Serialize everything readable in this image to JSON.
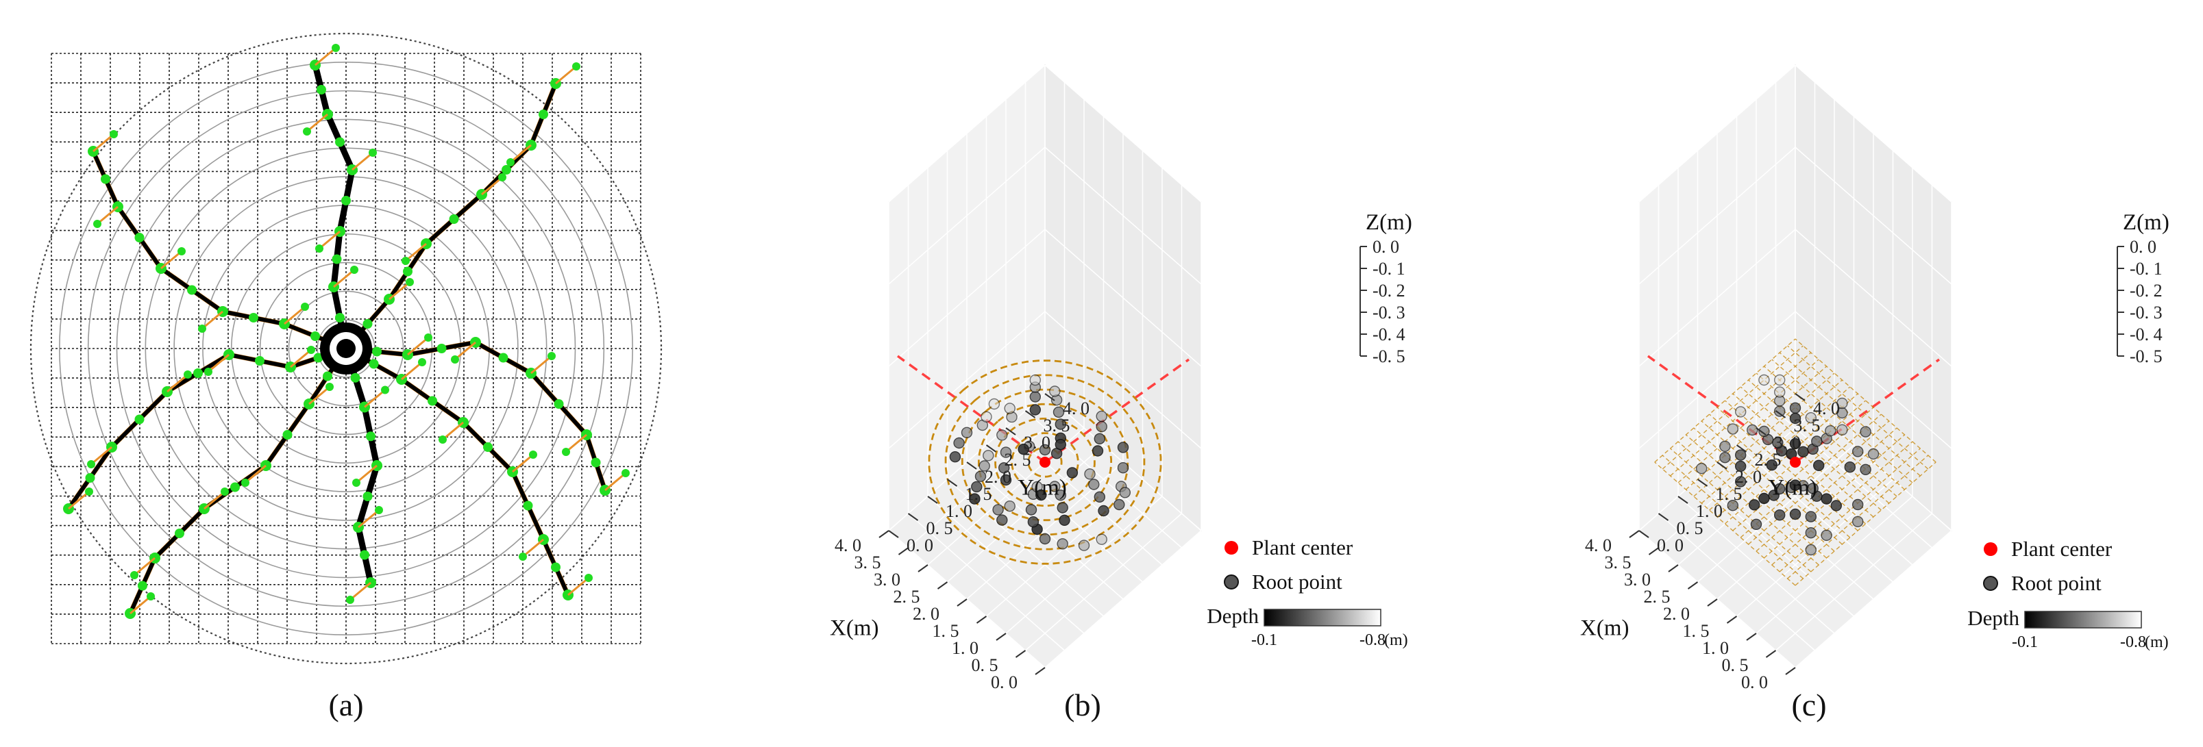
{
  "colors": {
    "root_green": "#22dd22",
    "root_orange": "#e8902a",
    "trace_black": "#000000",
    "plant_center": "#ff0000",
    "ring_orange": "#c88a10",
    "guide_red": "#ff4040",
    "pane_gray": "#efefef"
  },
  "panels": {
    "a": {
      "caption": "(a)"
    },
    "b": {
      "caption": "(b)"
    },
    "c": {
      "caption": "(c)"
    }
  },
  "chart_data": [
    {
      "type": "diagram",
      "panel": "a",
      "caption": "(a)",
      "grid": {
        "cols": 20,
        "rows": 20
      },
      "ring_count": 11,
      "roots": [
        {
          "points": [
            [
              0,
              0
            ],
            [
              0.3,
              0.95
            ],
            [
              0.5,
              1.9
            ],
            [
              0.2,
              2.9
            ],
            [
              0.4,
              3.8
            ]
          ]
        },
        {
          "points": [
            [
              0,
              0
            ],
            [
              -0.2,
              -1.0
            ],
            [
              -0.1,
              -1.9
            ],
            [
              0.1,
              -2.9
            ],
            [
              -0.3,
              -3.8
            ],
            [
              -0.5,
              -4.6
            ]
          ]
        },
        {
          "points": [
            [
              0,
              0
            ],
            [
              0.9,
              0.5
            ],
            [
              1.9,
              1.2
            ],
            [
              2.7,
              2.0
            ],
            [
              3.2,
              3.1
            ],
            [
              3.6,
              4.0
            ]
          ]
        },
        {
          "points": [
            [
              0,
              0
            ],
            [
              1.0,
              0.1
            ],
            [
              2.1,
              -0.1
            ],
            [
              3.0,
              0.4
            ],
            [
              3.9,
              1.4
            ],
            [
              4.2,
              2.3
            ]
          ]
        },
        {
          "points": [
            [
              0,
              0
            ],
            [
              -0.9,
              0.3
            ],
            [
              -1.9,
              0.1
            ],
            [
              -2.9,
              0.7
            ],
            [
              -3.8,
              1.6
            ],
            [
              -4.5,
              2.6
            ]
          ]
        },
        {
          "points": [
            [
              0,
              0
            ],
            [
              -1.0,
              -0.4
            ],
            [
              -2.0,
              -0.6
            ],
            [
              -3.0,
              -1.3
            ],
            [
              -3.7,
              -2.3
            ],
            [
              -4.1,
              -3.2
            ]
          ]
        },
        {
          "points": [
            [
              0,
              0
            ],
            [
              0.7,
              -0.8
            ],
            [
              1.3,
              -1.7
            ],
            [
              2.2,
              -2.5
            ],
            [
              3.0,
              -3.3
            ],
            [
              3.4,
              -4.3
            ]
          ]
        },
        {
          "points": [
            [
              0,
              0
            ],
            [
              -0.6,
              0.9
            ],
            [
              -1.3,
              1.9
            ],
            [
              -2.3,
              2.6
            ],
            [
              -3.1,
              3.4
            ],
            [
              -3.5,
              4.3
            ]
          ]
        }
      ]
    },
    {
      "type": "scatter3d",
      "panel": "b",
      "caption": "(b)",
      "x_label": "X(m)",
      "y_label": "Y(m)",
      "z_label": "Z(m)",
      "xlim": [
        0,
        4
      ],
      "ylim": [
        0,
        4
      ],
      "zlim": [
        -0.5,
        0
      ],
      "x_ticks": [
        "0. 0",
        "0. 5",
        "1. 0",
        "1. 5",
        "2. 0",
        "2. 5",
        "3. 0",
        "3. 5",
        "4. 0"
      ],
      "y_ticks": [
        "0. 0",
        "0. 5",
        "1. 0",
        "1. 5",
        "2. 0",
        "2. 5",
        "3. 0",
        "3. 5",
        "4. 0"
      ],
      "z_ticks": [
        "0. 0",
        "-0. 1",
        "-0. 2",
        "-0. 3",
        "-0. 4",
        "-0. 5"
      ],
      "plant_center": [
        2.0,
        2.0,
        0
      ],
      "rings": [
        0.3,
        0.6,
        0.9,
        1.2,
        1.5,
        1.8,
        2.1
      ],
      "legend": [
        {
          "label": "Plant center",
          "color": "#ff0000"
        },
        {
          "label": "Root point",
          "color": "#555555"
        }
      ],
      "colorbar": {
        "label": "Depth",
        "min_label": "-0.1",
        "max_label": "-0.8",
        "unit": "(m)"
      },
      "root_points": [
        [
          1.15,
          0.95,
          -0.05
        ],
        [
          1.35,
          1.05,
          -0.12
        ],
        [
          1.6,
          1.25,
          -0.2
        ],
        [
          1.85,
          1.55,
          -0.28
        ],
        [
          1.95,
          1.75,
          -0.35
        ],
        [
          0.95,
          1.45,
          -0.08
        ],
        [
          1.2,
          1.65,
          -0.15
        ],
        [
          1.45,
          1.85,
          -0.22
        ],
        [
          1.7,
          1.95,
          -0.3
        ],
        [
          0.6,
          2.1,
          -0.1
        ],
        [
          0.9,
          2.3,
          -0.18
        ],
        [
          1.2,
          2.45,
          -0.25
        ],
        [
          1.45,
          2.6,
          -0.33
        ],
        [
          2.4,
          0.6,
          -0.06
        ],
        [
          2.6,
          0.85,
          -0.14
        ],
        [
          2.75,
          1.1,
          -0.22
        ],
        [
          2.9,
          1.35,
          -0.3
        ],
        [
          3.05,
          1.6,
          -0.38
        ],
        [
          2.3,
          1.3,
          -0.1
        ],
        [
          2.55,
          1.5,
          -0.18
        ],
        [
          2.8,
          1.8,
          -0.26
        ],
        [
          3.15,
          2.05,
          -0.34
        ],
        [
          2.2,
          2.6,
          -0.08
        ],
        [
          2.45,
          2.85,
          -0.16
        ],
        [
          2.7,
          3.05,
          -0.24
        ],
        [
          2.95,
          3.25,
          -0.32
        ],
        [
          3.15,
          3.4,
          -0.4
        ],
        [
          2.05,
          2.35,
          -0.12
        ],
        [
          2.3,
          2.3,
          -0.2
        ],
        [
          2.6,
          2.2,
          -0.28
        ],
        [
          3.3,
          2.45,
          -0.36
        ],
        [
          3.5,
          2.6,
          -0.44
        ],
        [
          1.55,
          2.9,
          -0.1
        ],
        [
          1.75,
          3.15,
          -0.18
        ],
        [
          1.95,
          3.4,
          -0.26
        ],
        [
          2.15,
          3.6,
          -0.34
        ],
        [
          1.0,
          1.0,
          -0.2
        ],
        [
          0.75,
          1.2,
          -0.28
        ],
        [
          0.5,
          1.5,
          -0.36
        ],
        [
          0.4,
          1.85,
          -0.42
        ],
        [
          3.3,
          1.0,
          -0.12
        ],
        [
          3.5,
          1.3,
          -0.2
        ],
        [
          3.6,
          1.6,
          -0.28
        ],
        [
          3.55,
          1.95,
          -0.35
        ],
        [
          1.3,
          3.3,
          -0.14
        ],
        [
          1.05,
          3.05,
          -0.22
        ],
        [
          0.85,
          2.8,
          -0.3
        ],
        [
          2.95,
          2.7,
          -0.1
        ],
        [
          3.2,
          2.95,
          -0.2
        ],
        [
          3.4,
          3.15,
          -0.3
        ],
        [
          3.6,
          3.35,
          -0.46
        ],
        [
          1.8,
          0.7,
          -0.16
        ],
        [
          2.05,
          0.85,
          -0.24
        ],
        [
          2.0,
          1.1,
          -0.32
        ],
        [
          3.7,
          2.2,
          -0.48
        ],
        [
          3.8,
          2.5,
          -0.5
        ],
        [
          0.55,
          2.45,
          -0.2
        ],
        [
          0.7,
          2.75,
          -0.28
        ],
        [
          1.6,
          1.5,
          -0.05
        ],
        [
          2.5,
          1.95,
          -0.06
        ],
        [
          2.1,
          2.5,
          -0.07
        ],
        [
          1.55,
          2.25,
          -0.09
        ]
      ]
    },
    {
      "type": "scatter3d",
      "panel": "c",
      "caption": "(c)",
      "x_label": "X(m)",
      "y_label": "Y(m)",
      "z_label": "Z(m)",
      "xlim": [
        0,
        4
      ],
      "ylim": [
        0,
        4
      ],
      "zlim": [
        -0.5,
        0
      ],
      "x_ticks": [
        "0. 0",
        "0. 5",
        "1. 0",
        "1. 5",
        "2. 0",
        "2. 5",
        "3. 0",
        "3. 5",
        "4. 0"
      ],
      "y_ticks": [
        "0. 0",
        "0. 5",
        "1. 0",
        "1. 5",
        "2. 0",
        "2. 5",
        "3. 0",
        "3. 5",
        "4. 0"
      ],
      "z_ticks": [
        "0. 0",
        "-0. 1",
        "-0. 2",
        "-0. 3",
        "-0. 4",
        "-0. 5"
      ],
      "plant_center": [
        2.0,
        2.0,
        0
      ],
      "grid_spacing": 0.2,
      "legend": [
        {
          "label": "Plant center",
          "color": "#ff0000"
        },
        {
          "label": "Root point",
          "color": "#555555"
        }
      ],
      "colorbar": {
        "label": "Depth",
        "min_label": "-0.1",
        "max_label": "-0.8",
        "unit": "(m)"
      },
      "root_points": [
        [
          1.9,
          1.1,
          -0.05
        ],
        [
          1.85,
          1.3,
          -0.1
        ],
        [
          1.9,
          1.5,
          -0.15
        ],
        [
          1.8,
          1.7,
          -0.2
        ],
        [
          1.95,
          0.9,
          -0.08
        ],
        [
          1.1,
          1.9,
          -0.06
        ],
        [
          1.3,
          1.85,
          -0.12
        ],
        [
          1.5,
          1.95,
          -0.18
        ],
        [
          1.7,
          1.9,
          -0.24
        ],
        [
          0.9,
          1.95,
          -0.1
        ],
        [
          2.2,
          2.1,
          -0.05
        ],
        [
          2.4,
          2.05,
          -0.1
        ],
        [
          2.6,
          2.15,
          -0.15
        ],
        [
          2.8,
          2.1,
          -0.2
        ],
        [
          3.0,
          2.2,
          -0.25
        ],
        [
          3.2,
          2.1,
          -0.3
        ],
        [
          2.1,
          2.3,
          -0.08
        ],
        [
          2.05,
          2.5,
          -0.14
        ],
        [
          2.15,
          2.7,
          -0.2
        ],
        [
          2.1,
          2.9,
          -0.26
        ],
        [
          2.2,
          3.1,
          -0.32
        ],
        [
          2.1,
          3.3,
          -0.38
        ],
        [
          1.3,
          1.3,
          -0.1
        ],
        [
          1.1,
          1.5,
          -0.16
        ],
        [
          0.9,
          1.3,
          -0.22
        ],
        [
          0.7,
          1.5,
          -0.28
        ],
        [
          1.5,
          1.1,
          -0.12
        ],
        [
          2.7,
          1.3,
          -0.1
        ],
        [
          2.9,
          1.5,
          -0.16
        ],
        [
          3.1,
          1.3,
          -0.22
        ],
        [
          3.3,
          1.5,
          -0.28
        ],
        [
          2.5,
          1.1,
          -0.14
        ],
        [
          1.3,
          2.7,
          -0.12
        ],
        [
          1.1,
          2.9,
          -0.18
        ],
        [
          1.5,
          3.1,
          -0.24
        ],
        [
          1.3,
          3.3,
          -0.3
        ],
        [
          2.7,
          2.7,
          -0.1
        ],
        [
          2.9,
          2.9,
          -0.18
        ],
        [
          3.1,
          2.7,
          -0.26
        ],
        [
          3.3,
          2.9,
          -0.34
        ],
        [
          2.7,
          3.1,
          -0.42
        ],
        [
          3.5,
          3.1,
          -0.46
        ],
        [
          0.7,
          2.3,
          -0.2
        ],
        [
          0.5,
          2.1,
          -0.28
        ],
        [
          3.5,
          1.9,
          -0.36
        ],
        [
          3.7,
          2.3,
          -0.44
        ],
        [
          2.3,
          3.5,
          -0.3
        ],
        [
          2.5,
          3.7,
          -0.4
        ],
        [
          1.7,
          3.5,
          -0.26
        ],
        [
          3.7,
          3.3,
          -0.5
        ],
        [
          3.9,
          3.1,
          -0.5
        ],
        [
          1.7,
          0.7,
          -0.18
        ],
        [
          2.3,
          0.7,
          -0.22
        ],
        [
          0.7,
          1.1,
          -0.3
        ],
        [
          3.3,
          0.9,
          -0.32
        ],
        [
          2.3,
          2.3,
          -0.05
        ],
        [
          1.7,
          2.3,
          -0.08
        ],
        [
          2.3,
          1.7,
          -0.07
        ],
        [
          1.7,
          1.7,
          -0.06
        ]
      ]
    }
  ]
}
